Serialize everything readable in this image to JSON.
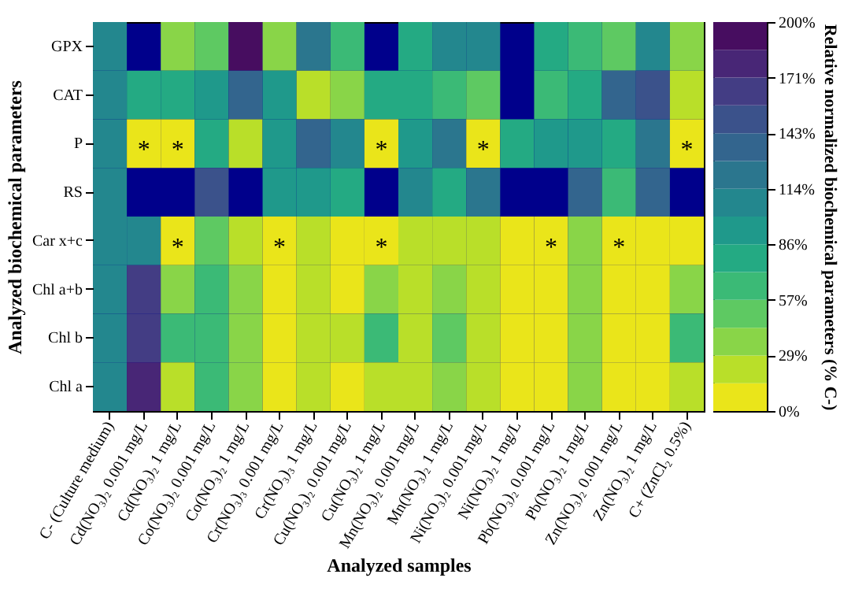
{
  "chart_data": {
    "type": "heatmap",
    "xlabel": "Analyzed samples",
    "ylabel": "Analyzed biochemical parameters",
    "clabel": "Relative normalized biochemical parameters (% C-)",
    "categories": [
      "C- (Culture medium)",
      "Cd(NO₃)₂ 0.001 mg/L",
      "Cd(NO₃)₂ 1 mg/L",
      "Co(NO₃)₂ 0.001 mg/L",
      "Co(NO₃)₂ 1 mg/L",
      "Cr(NO₃)₃ 0.001 mg/L",
      "Cr(NO₃)₃ 1 mg/L",
      "Cu(NO₃)₂ 0.001 mg/L",
      "Cu(NO₃)₂ 1 mg/L",
      "Mn(NO₃)₂ 0.001 mg/L",
      "Mn(NO₃)₂ 1 mg/L",
      "Ni(NO₃)₂ 0.001 mg/L",
      "Ni(NO₃)₂ 1 mg/L",
      "Pb(NO₃)₂ 0.001 mg/L",
      "Pb(NO₃)₂ 1 mg/L",
      "Zn(NO₃)₂ 0.001 mg/L",
      "Zn(NO₃)₂ 1 mg/L",
      "C+ (ZnCl₂ 0.5%)"
    ],
    "y_categories": [
      "GPX",
      "CAT",
      "P",
      "RS",
      "Car x+c",
      "Chl a+b",
      "Chl b",
      "Chl a"
    ],
    "cells": [
      [
        100,
        null,
        36,
        50,
        193,
        36,
        121,
        64,
        null,
        79,
        107,
        107,
        null,
        79,
        64,
        50,
        107,
        36
      ],
      [
        100,
        79,
        79,
        93,
        136,
        93,
        21,
        36,
        79,
        79,
        64,
        50,
        null,
        64,
        79,
        136,
        150,
        21
      ],
      [
        100,
        7,
        7,
        79,
        21,
        93,
        136,
        107,
        7,
        93,
        121,
        7,
        79,
        93,
        93,
        79,
        121,
        7
      ],
      [
        100,
        null,
        null,
        150,
        null,
        93,
        93,
        79,
        null,
        107,
        79,
        121,
        null,
        null,
        136,
        64,
        136,
        null
      ],
      [
        100,
        107,
        7,
        50,
        21,
        7,
        21,
        7,
        7,
        21,
        21,
        21,
        7,
        7,
        36,
        7,
        7,
        7
      ],
      [
        100,
        164,
        36,
        64,
        36,
        7,
        21,
        7,
        36,
        21,
        36,
        21,
        7,
        7,
        36,
        7,
        7,
        36
      ],
      [
        100,
        164,
        64,
        64,
        36,
        7,
        21,
        21,
        64,
        21,
        50,
        21,
        7,
        7,
        36,
        7,
        7,
        64
      ],
      [
        100,
        179,
        21,
        64,
        36,
        7,
        21,
        7,
        21,
        21,
        36,
        21,
        7,
        7,
        36,
        7,
        7,
        21
      ]
    ],
    "clim": [
      0,
      200
    ],
    "cticks": [
      {
        "value": 0,
        "label": "0%"
      },
      {
        "value": 28.57,
        "label": "29%"
      },
      {
        "value": 57.14,
        "label": "57%"
      },
      {
        "value": 85.71,
        "label": "86%"
      },
      {
        "value": 114.29,
        "label": "114%"
      },
      {
        "value": 142.86,
        "label": "143%"
      },
      {
        "value": 171.43,
        "label": "171%"
      },
      {
        "value": 200,
        "label": "200%"
      }
    ],
    "cell_labels": [
      [
        null,
        null,
        null,
        null,
        null,
        null,
        null,
        null,
        null,
        null,
        null,
        null,
        null,
        null,
        null,
        null,
        null,
        null
      ],
      [
        null,
        null,
        null,
        null,
        null,
        null,
        null,
        null,
        null,
        null,
        null,
        null,
        null,
        null,
        null,
        null,
        null,
        null
      ],
      [
        null,
        "*",
        "*",
        null,
        null,
        null,
        null,
        null,
        "*",
        null,
        null,
        "*",
        null,
        null,
        null,
        null,
        null,
        "*"
      ],
      [
        null,
        null,
        null,
        null,
        null,
        null,
        null,
        null,
        null,
        null,
        null,
        null,
        null,
        null,
        null,
        null,
        null,
        null
      ],
      [
        null,
        null,
        "*",
        null,
        null,
        "*",
        null,
        null,
        "*",
        null,
        null,
        null,
        null,
        "*",
        null,
        "*",
        null,
        null
      ],
      [
        null,
        null,
        null,
        null,
        null,
        null,
        null,
        null,
        null,
        null,
        null,
        null,
        null,
        null,
        null,
        null,
        null,
        null
      ],
      [
        null,
        null,
        null,
        null,
        null,
        null,
        null,
        null,
        null,
        null,
        null,
        null,
        null,
        null,
        null,
        null,
        null,
        null
      ],
      [
        null,
        null,
        null,
        null,
        null,
        null,
        null,
        null,
        null,
        null,
        null,
        null,
        null,
        null,
        null,
        null,
        null,
        null
      ]
    ]
  }
}
